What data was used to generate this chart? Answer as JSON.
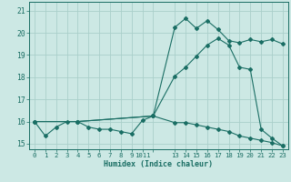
{
  "xlabel": "Humidex (Indice chaleur)",
  "bg_color": "#cce8e4",
  "grid_color": "#aacfca",
  "line_color": "#1a6e64",
  "spine_color": "#1a6e64",
  "xlim": [
    -0.5,
    23.5
  ],
  "ylim": [
    14.75,
    21.4
  ],
  "xtick_positions": [
    0,
    1,
    2,
    3,
    4,
    5,
    6,
    7,
    8,
    9,
    10,
    11,
    13,
    14,
    15,
    16,
    17,
    18,
    19,
    20,
    21,
    22,
    23
  ],
  "xtick_labels": [
    "0",
    "1",
    "2",
    "3",
    "4",
    "5",
    "6",
    "7",
    "8",
    "9",
    "1011",
    "",
    "13",
    "14",
    "15",
    "16",
    "17",
    "18",
    "19",
    "20",
    "21",
    "22",
    "23"
  ],
  "ytick_positions": [
    15,
    16,
    17,
    18,
    19,
    20,
    21
  ],
  "ytick_labels": [
    "15",
    "16",
    "17",
    "18",
    "19",
    "20",
    "21"
  ],
  "line1_x": [
    0,
    1,
    2,
    3,
    4,
    5,
    6,
    7,
    8,
    9,
    10,
    11,
    13,
    14,
    15,
    16,
    17,
    18,
    19,
    20,
    21,
    22,
    23
  ],
  "line1_y": [
    16.0,
    15.35,
    15.75,
    16.0,
    16.0,
    15.75,
    15.65,
    15.65,
    15.55,
    15.45,
    16.05,
    16.25,
    15.95,
    15.95,
    15.85,
    15.75,
    15.65,
    15.55,
    15.35,
    15.25,
    15.15,
    15.05,
    14.9
  ],
  "line2_x": [
    0,
    4,
    11,
    13,
    14,
    15,
    16,
    17,
    18,
    19,
    20,
    21,
    22,
    23
  ],
  "line2_y": [
    16.0,
    16.0,
    16.25,
    18.05,
    18.45,
    18.95,
    19.45,
    19.75,
    19.45,
    18.45,
    18.35,
    15.65,
    15.25,
    14.9
  ],
  "line3_x": [
    0,
    4,
    11,
    13,
    14,
    15,
    16,
    17,
    18,
    19,
    20,
    21,
    22,
    23
  ],
  "line3_y": [
    16.0,
    16.0,
    16.25,
    20.25,
    20.65,
    20.2,
    20.55,
    20.15,
    19.65,
    19.55,
    19.7,
    19.6,
    19.7,
    19.5
  ]
}
